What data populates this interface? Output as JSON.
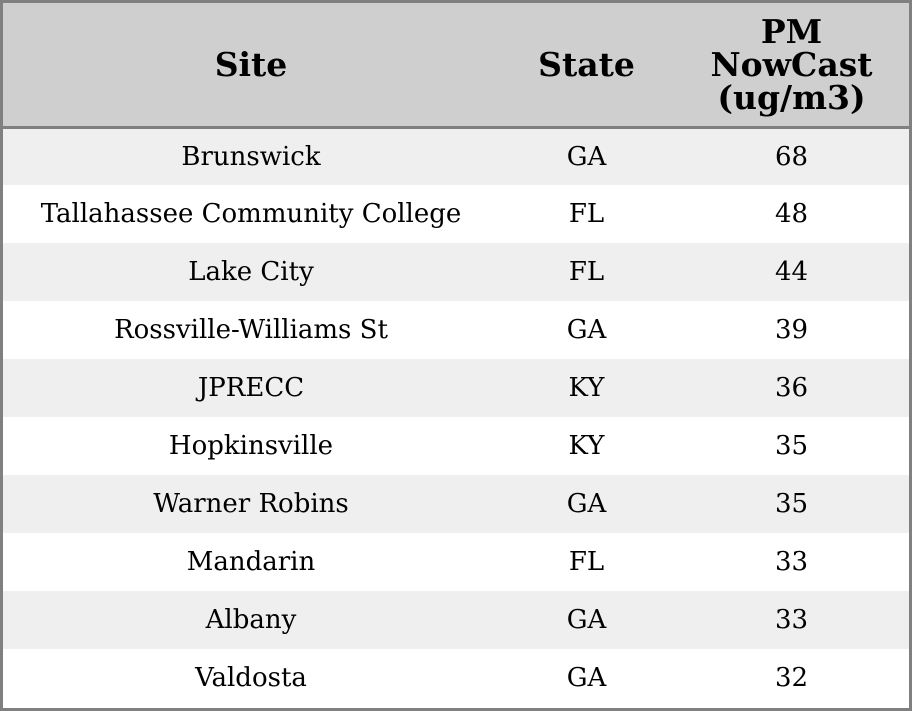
{
  "chart_data": {
    "type": "table",
    "columns": [
      "Site",
      "State",
      "PM NowCast (ug/m3)"
    ],
    "header_lines": {
      "site": [
        "Site"
      ],
      "state": [
        "State"
      ],
      "pm": [
        "PM",
        "NowCast",
        "(ug/m3)"
      ]
    },
    "rows": [
      {
        "site": "Brunswick",
        "state": "GA",
        "pm": "68"
      },
      {
        "site": "Tallahassee Community College",
        "state": "FL",
        "pm": "48"
      },
      {
        "site": "Lake City",
        "state": "FL",
        "pm": "44"
      },
      {
        "site": "Rossville-Williams St",
        "state": "GA",
        "pm": "39"
      },
      {
        "site": "JPRECC",
        "state": "KY",
        "pm": "36"
      },
      {
        "site": "Hopkinsville",
        "state": "KY",
        "pm": "35"
      },
      {
        "site": "Warner Robins",
        "state": "GA",
        "pm": "35"
      },
      {
        "site": "Mandarin",
        "state": "FL",
        "pm": "33"
      },
      {
        "site": "Albany",
        "state": "GA",
        "pm": "33"
      },
      {
        "site": "Valdosta",
        "state": "GA",
        "pm": "32"
      }
    ],
    "colors": {
      "header_bg": "#cfcfcf",
      "row_alt_bg": "#efefef",
      "row_bg": "#ffffff",
      "border": "#808080"
    }
  }
}
